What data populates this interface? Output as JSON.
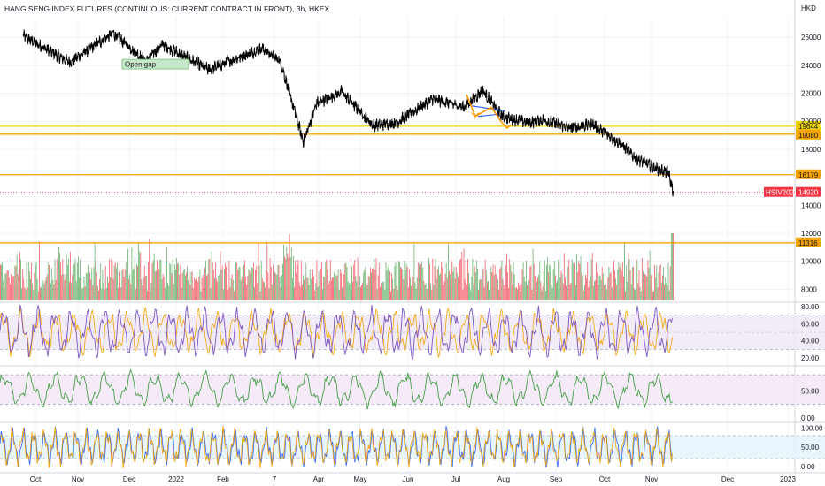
{
  "chart_data": {
    "type": "line",
    "title": "HANG SENG INDEX FUTURES (CONTINUOUS: CURRENT CONTRACT IN FRONT), 3h, HKEX",
    "currency": "HKD",
    "x_labels": [
      "Oct",
      "Nov",
      "Dec",
      "2022",
      "Feb",
      "7",
      "Apr",
      "May",
      "Jun",
      "Jul",
      "Aug",
      "Sep",
      "Oct",
      "Nov",
      "Dec",
      "2023"
    ],
    "price_axis": {
      "ticks": [
        "26000",
        "24000",
        "22000",
        "20000",
        "18000",
        "14000",
        "12000",
        "10000",
        "8000"
      ],
      "ylim": [
        7200,
        27400
      ]
    },
    "price_series": {
      "name": "HSIV2022",
      "x": [
        "2021-09-27",
        "2021-10-25",
        "2021-11-20",
        "2021-12-10",
        "2021-12-20",
        "2022-01-07",
        "2022-01-17",
        "2022-02-18",
        "2022-03-01",
        "2022-03-15",
        "2022-03-23",
        "2022-04-07",
        "2022-04-26",
        "2022-05-10",
        "2022-06-01",
        "2022-06-20",
        "2022-07-01",
        "2022-07-13",
        "2022-07-29",
        "2022-08-06",
        "2022-08-24",
        "2022-09-05",
        "2022-09-22",
        "2022-10-01",
        "2022-10-12",
        "2022-10-21",
        "2022-10-24"
      ],
      "y": [
        26100,
        24200,
        26300,
        24300,
        25500,
        24300,
        23700,
        25200,
        24300,
        18500,
        21300,
        22100,
        19700,
        19900,
        21600,
        21000,
        22200,
        20300,
        19900,
        20100,
        19500,
        19800,
        18400,
        17400,
        16700,
        16300,
        14920
      ]
    },
    "horizontal_levels": [
      {
        "label": "19644",
        "value": 19644
      },
      {
        "label": "19080",
        "value": 19080
      },
      {
        "label": "16179",
        "value": 16179
      },
      {
        "label": "11316",
        "value": 11316
      }
    ],
    "last_price": {
      "name": "HSIV2022",
      "value": "14920"
    },
    "annotations": [
      "Open gap"
    ],
    "volume": {
      "max_shown_level": 12000,
      "colors": {
        "up": "#26a69a",
        "down": "#ef5350"
      }
    },
    "oscillators": [
      {
        "ticks": [
          "80.00",
          "60.00",
          "40.00",
          "20.00"
        ],
        "range": [
          15,
          82
        ],
        "band": [
          30,
          70
        ]
      },
      {
        "ticks": [
          "50.00",
          "0.00"
        ],
        "range": [
          -5,
          90
        ],
        "band": [
          25,
          80
        ]
      },
      {
        "ticks": [
          "100.00",
          "50.00",
          "0.00"
        ],
        "range": [
          -5,
          110
        ],
        "band": [
          20,
          80
        ]
      }
    ],
    "colors": {
      "price": "#000000",
      "level": "#f7a300",
      "level_bright": "#f0d000",
      "last_price": "#f23645",
      "osc_purple": "#7e57c2",
      "osc_orange": "#f7a300",
      "osc_green": "#43a047",
      "osc_blue": "#2962ff",
      "band_purple": "#ede7f6",
      "band_lilac": "#f3e5f5",
      "band_blue": "#e3f2fd",
      "pattern_blue": "#2962ff",
      "pattern_orange": "#ff9800",
      "gap_box": "#c8e6c9"
    }
  }
}
